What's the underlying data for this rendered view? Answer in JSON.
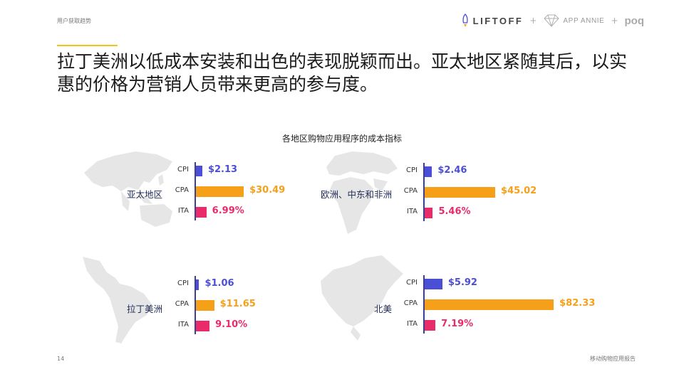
{
  "header": {
    "section_label": "用户获取趋势",
    "logos": {
      "liftoff": "LIFTOFF",
      "app_annie": "APP ANNIE",
      "poq": "poq",
      "plus": "+"
    }
  },
  "headline": "拉丁美洲以低成本安装和出色的表现脱颖而出。亚太地区紧随其后，以实惠的价格为营销人员带来更高的参与度。",
  "colors": {
    "CPI": "#4a4fd6",
    "CPA": "#f6a01a",
    "ITA": "#ea2b6a",
    "axis": "#3d3f8f",
    "map": "#e6e6e6",
    "accent": "#f7c21b"
  },
  "chart_data": {
    "type": "bar",
    "title": "各地区购物应用程序的成本指标",
    "metrics": [
      "CPI",
      "CPA",
      "ITA"
    ],
    "regions": [
      {
        "name": "亚太地区",
        "values": {
          "CPI": 2.13,
          "CPA": 30.49,
          "ITA": 6.99
        },
        "labels": {
          "CPI": "$2.13",
          "CPA": "$30.49",
          "ITA": "6.99%"
        }
      },
      {
        "name": "欧洲、中东和非洲",
        "values": {
          "CPI": 2.46,
          "CPA": 45.02,
          "ITA": 5.46
        },
        "labels": {
          "CPI": "$2.46",
          "CPA": "$45.02",
          "ITA": "5.46%"
        }
      },
      {
        "name": "拉丁美洲",
        "values": {
          "CPI": 1.06,
          "CPA": 11.65,
          "ITA": 9.1
        },
        "labels": {
          "CPI": "$1.06",
          "CPA": "$11.65",
          "ITA": "9.10%"
        }
      },
      {
        "name": "北美",
        "values": {
          "CPI": 5.92,
          "CPA": 82.33,
          "ITA": 7.19
        },
        "labels": {
          "CPI": "$5.92",
          "CPA": "$82.33",
          "ITA": "7.19%"
        }
      }
    ]
  },
  "footer": {
    "page_number": "14",
    "report_title": "移动购物应用报告"
  }
}
